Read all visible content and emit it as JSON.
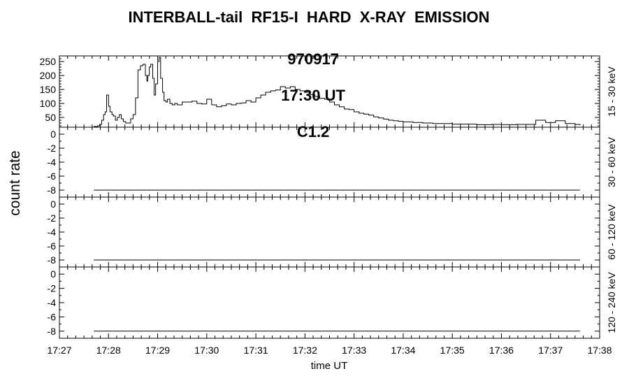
{
  "chart_data": {
    "type": "line",
    "title": "INTERBALL-tail  RF15-I  HARD  X-RAY  EMISSION",
    "subtitle": [
      "970917",
      "17:30 UT",
      "C1.2"
    ],
    "xlabel": "time UT",
    "ylabel": "count rate",
    "x_ticks": [
      "17:27",
      "17:28",
      "17:29",
      "17:30",
      "17:31",
      "17:32",
      "17:33",
      "17:34",
      "17:35",
      "17:36",
      "17:37",
      "17:38"
    ],
    "xlim": [
      0,
      11
    ],
    "x_unit": "minutes after 17:27 UT",
    "panels": [
      {
        "name": "15 - 30 keV",
        "ylim": [
          15,
          270
        ],
        "y_ticks": [
          50,
          100,
          150,
          200,
          250
        ],
        "y_tick_labels": [
          "50",
          "100",
          "150",
          "200",
          "250"
        ],
        "x": [
          0.7,
          0.78,
          0.82,
          0.86,
          0.9,
          0.93,
          0.96,
          1.0,
          1.03,
          1.07,
          1.1,
          1.14,
          1.18,
          1.22,
          1.26,
          1.3,
          1.35,
          1.4,
          1.45,
          1.5,
          1.55,
          1.6,
          1.65,
          1.7,
          1.75,
          1.78,
          1.8,
          1.83,
          1.86,
          1.9,
          1.93,
          1.96,
          2.0,
          2.03,
          2.06,
          2.1,
          2.13,
          2.17,
          2.2,
          2.25,
          2.3,
          2.35,
          2.4,
          2.5,
          2.6,
          2.7,
          2.8,
          2.9,
          3.0,
          3.1,
          3.2,
          3.3,
          3.4,
          3.5,
          3.6,
          3.7,
          3.8,
          3.9,
          4.0,
          4.1,
          4.2,
          4.3,
          4.4,
          4.5,
          4.6,
          4.7,
          4.8,
          4.9,
          5.0,
          5.1,
          5.2,
          5.3,
          5.4,
          5.5,
          5.6,
          5.7,
          5.8,
          5.9,
          6.0,
          6.1,
          6.2,
          6.3,
          6.4,
          6.5,
          6.6,
          6.7,
          6.8,
          6.9,
          7.0,
          7.2,
          7.4,
          7.6,
          7.8,
          8.0,
          8.2,
          8.5,
          8.8,
          9.0,
          9.3,
          9.6,
          9.7,
          9.9,
          10.1,
          10.3,
          10.5,
          10.6
        ],
        "values": [
          15,
          20,
          25,
          40,
          60,
          70,
          130,
          90,
          70,
          60,
          55,
          40,
          50,
          60,
          45,
          35,
          30,
          30,
          45,
          60,
          120,
          220,
          235,
          240,
          200,
          180,
          200,
          230,
          240,
          190,
          130,
          170,
          250,
          265,
          190,
          140,
          110,
          105,
          115,
          100,
          95,
          100,
          95,
          105,
          105,
          108,
          100,
          98,
          115,
          95,
          88,
          92,
          98,
          95,
          100,
          102,
          110,
          105,
          120,
          130,
          140,
          145,
          148,
          160,
          155,
          160,
          150,
          145,
          140,
          132,
          125,
          118,
          115,
          105,
          95,
          88,
          80,
          78,
          70,
          65,
          62,
          58,
          52,
          48,
          44,
          40,
          38,
          36,
          34,
          32,
          30,
          28,
          28,
          26,
          26,
          24,
          25,
          24,
          25,
          25,
          40,
          32,
          38,
          28,
          25,
          22
        ],
        "description": "approximate count rate in the 15 - 30 keV channel"
      },
      {
        "name": "30 - 60 keV",
        "ylim": [
          -9,
          1
        ],
        "y_ticks": [
          0,
          -2,
          -4,
          -6,
          -8
        ],
        "y_tick_labels": [
          "0",
          "-2",
          "-4",
          "-6",
          "-8"
        ],
        "x": [
          0.7,
          10.6
        ],
        "values": [
          -8,
          -8
        ]
      },
      {
        "name": "60 - 120 keV",
        "ylim": [
          -9,
          1
        ],
        "y_ticks": [
          0,
          -2,
          -4,
          -6,
          -8
        ],
        "y_tick_labels": [
          "0",
          "-2",
          "-4",
          "-6",
          "-8"
        ],
        "x": [
          0.7,
          10.6
        ],
        "values": [
          -8,
          -8
        ]
      },
      {
        "name": "120 - 240 keV",
        "ylim": [
          -9,
          1
        ],
        "y_ticks": [
          0,
          -2,
          -4,
          -6,
          -8
        ],
        "y_tick_labels": [
          "0",
          "-2",
          "-4",
          "-6",
          "-8"
        ],
        "x": [
          0.7,
          10.6
        ],
        "values": [
          -8,
          -8
        ]
      }
    ],
    "grid": false
  }
}
